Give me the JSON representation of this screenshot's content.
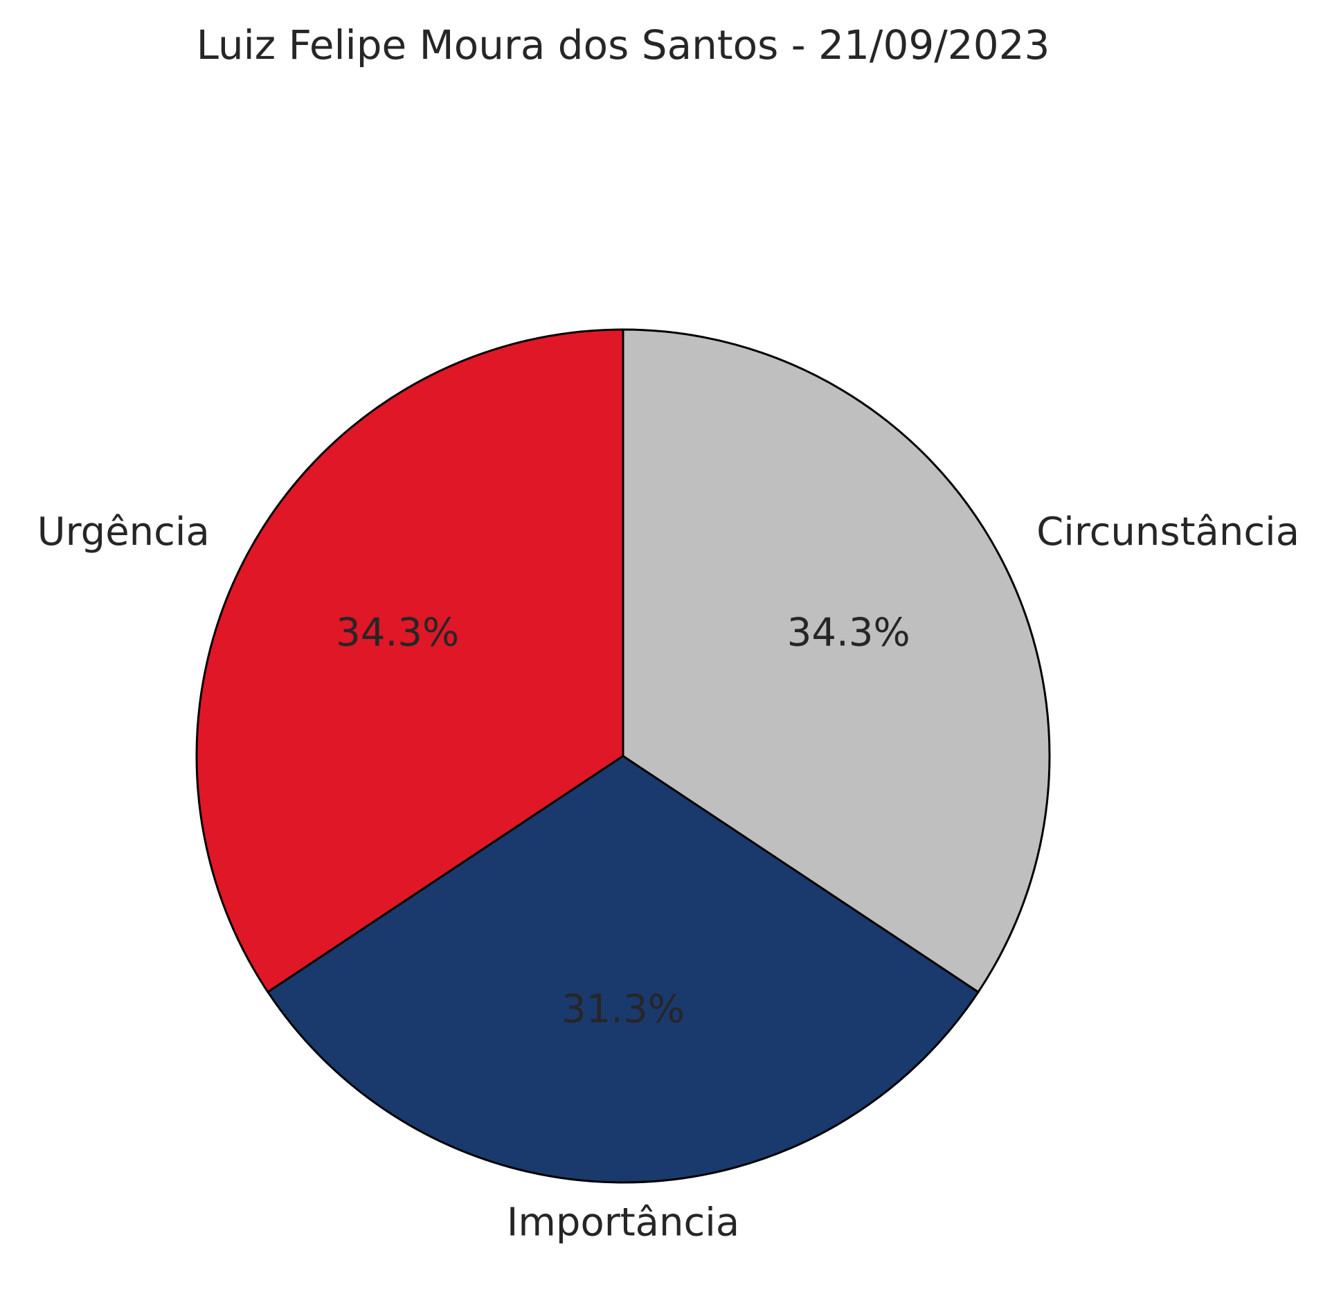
{
  "chart_data": {
    "type": "pie",
    "title": "Luiz Felipe Moura dos Santos - 21/09/2023",
    "start_angle_deg": 90,
    "direction": "counterclockwise",
    "slices": [
      {
        "label": "Urgência",
        "value": 34.3,
        "pct_label": "34.3%",
        "color": "#e01726"
      },
      {
        "label": "Importância",
        "value": 31.3,
        "pct_label": "31.3%",
        "color": "#1a3a6e"
      },
      {
        "label": "Circunstância",
        "value": 34.3,
        "pct_label": "34.3%",
        "color": "#bebfbe"
      }
    ]
  }
}
